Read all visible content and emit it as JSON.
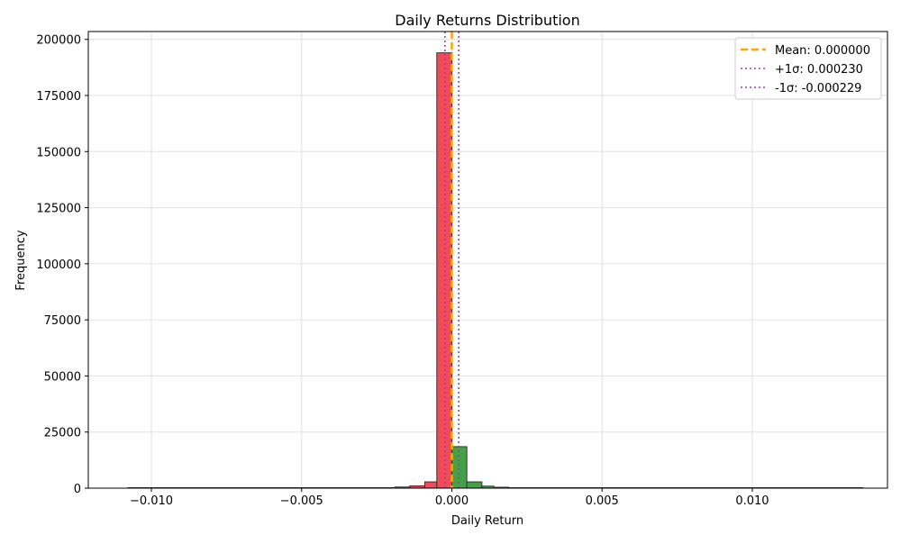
{
  "chart_data": {
    "type": "bar",
    "title": "Daily Returns Distribution",
    "xlabel": "Daily Return",
    "ylabel": "Frequency",
    "xlim": [
      -0.0121,
      0.0145
    ],
    "ylim": [
      0,
      203500
    ],
    "grid": true,
    "xticks": [
      -0.01,
      -0.005,
      0.0,
      0.005,
      0.01
    ],
    "xtick_labels": [
      "−0.010",
      "−0.005",
      "0.000",
      "0.005",
      "0.010"
    ],
    "yticks": [
      0,
      25000,
      50000,
      75000,
      100000,
      125000,
      150000,
      175000,
      200000
    ],
    "ytick_labels": [
      "0",
      "25000",
      "50000",
      "75000",
      "100000",
      "125000",
      "150000",
      "175000",
      "200000"
    ],
    "bins": [
      {
        "x0": -0.0024,
        "x1": -0.0019,
        "count": 200,
        "sign": "negative"
      },
      {
        "x0": -0.0019,
        "x1": -0.0014,
        "count": 500,
        "sign": "negative"
      },
      {
        "x0": -0.0014,
        "x1": -0.0009,
        "count": 1000,
        "sign": "negative"
      },
      {
        "x0": -0.0009,
        "x1": -0.0005,
        "count": 2800,
        "sign": "negative"
      },
      {
        "x0": -0.0005,
        "x1": 0.0,
        "count": 194000,
        "sign": "negative"
      },
      {
        "x0": 0.0,
        "x1": 0.0005,
        "count": 18500,
        "sign": "positive"
      },
      {
        "x0": 0.0005,
        "x1": 0.001,
        "count": 2800,
        "sign": "positive"
      },
      {
        "x0": 0.001,
        "x1": 0.0014,
        "count": 900,
        "sign": "positive"
      },
      {
        "x0": 0.0014,
        "x1": 0.0019,
        "count": 400,
        "sign": "positive"
      },
      {
        "x0": 0.0019,
        "x1": 0.0024,
        "count": 200,
        "sign": "positive"
      }
    ],
    "baseline_x": [
      -0.0108,
      0.0137
    ],
    "colors": {
      "negative": "#f04050",
      "positive": "#3c9c3c",
      "edge": "#333333",
      "mean": "#ffa500",
      "sigma": "#9b3fa8",
      "grid": "#e0e0e0"
    },
    "lines": [
      {
        "label": "Mean: 0.000000",
        "x": 0.0,
        "style": "dashed",
        "color_key": "mean"
      },
      {
        "label": "+1σ: 0.000230",
        "x": 0.00023,
        "style": "dotted",
        "color_key": "sigma"
      },
      {
        "label": "-1σ: -0.000229",
        "x": -0.000229,
        "style": "dotted",
        "color_key": "sigma"
      }
    ],
    "legend_position": "top-right"
  }
}
